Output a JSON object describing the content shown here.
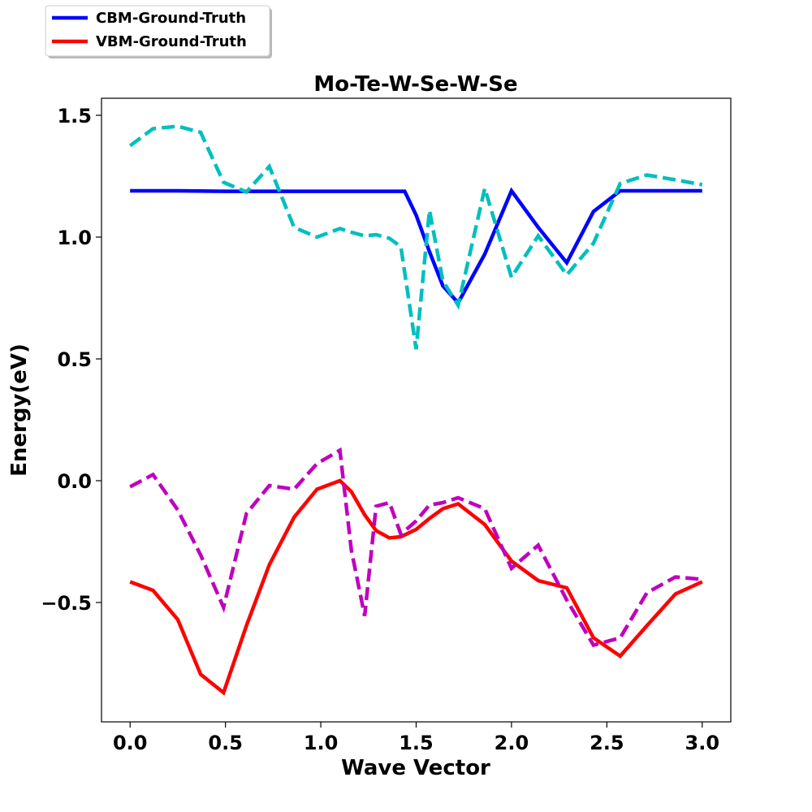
{
  "chart_data": {
    "type": "line",
    "title": "Mo-Te-W-Se-W-Se",
    "xlabel": "Wave Vector",
    "ylabel": "Energy(eV)",
    "xlim": [
      -0.15,
      3.15
    ],
    "ylim": [
      -0.99,
      1.57
    ],
    "xticks": [
      0.0,
      0.5,
      1.0,
      1.5,
      2.0,
      2.5,
      3.0
    ],
    "xtick_labels": [
      "0.0",
      "0.5",
      "1.0",
      "1.5",
      "2.0",
      "2.5",
      "3.0"
    ],
    "yticks": [
      -0.5,
      0.0,
      0.5,
      1.0,
      1.5
    ],
    "ytick_labels": [
      "−0.5",
      "0.0",
      "0.5",
      "1.0",
      "1.5"
    ],
    "grid": false,
    "legend_position": "top-left, outside the plot",
    "series": [
      {
        "name": "CBM-Ground-Truth",
        "color": "#0000ff",
        "style": "solid",
        "in_legend": true,
        "x": [
          0.0,
          0.25,
          0.5,
          0.75,
          1.0,
          1.25,
          1.44,
          1.5,
          1.57,
          1.64,
          1.72,
          1.86,
          2.0,
          2.14,
          2.29,
          2.43,
          2.57,
          2.71,
          2.86,
          3.0
        ],
        "y": [
          1.19,
          1.19,
          1.188,
          1.188,
          1.188,
          1.188,
          1.188,
          1.09,
          0.94,
          0.8,
          0.73,
          0.93,
          1.19,
          1.04,
          0.895,
          1.105,
          1.19,
          1.19,
          1.19,
          1.19
        ]
      },
      {
        "name": "VBM-Ground-Truth",
        "color": "#ff0000",
        "style": "solid",
        "in_legend": true,
        "x": [
          0.0,
          0.12,
          0.25,
          0.37,
          0.49,
          0.61,
          0.73,
          0.86,
          0.98,
          1.1,
          1.16,
          1.23,
          1.29,
          1.36,
          1.42,
          1.5,
          1.57,
          1.64,
          1.72,
          1.86,
          2.0,
          2.14,
          2.29,
          2.43,
          2.57,
          2.71,
          2.86,
          3.0
        ],
        "y": [
          -0.415,
          -0.45,
          -0.57,
          -0.795,
          -0.87,
          -0.595,
          -0.345,
          -0.15,
          -0.035,
          0.0,
          -0.045,
          -0.14,
          -0.205,
          -0.235,
          -0.23,
          -0.2,
          -0.155,
          -0.115,
          -0.095,
          -0.18,
          -0.33,
          -0.41,
          -0.44,
          -0.645,
          -0.72,
          -0.595,
          -0.465,
          -0.415
        ]
      },
      {
        "name": "",
        "color": "#00bfbf",
        "style": "dashed",
        "in_legend": false,
        "x": [
          0.0,
          0.12,
          0.25,
          0.37,
          0.49,
          0.61,
          0.73,
          0.86,
          0.98,
          1.1,
          1.16,
          1.23,
          1.29,
          1.36,
          1.42,
          1.5,
          1.57,
          1.64,
          1.72,
          1.86,
          2.0,
          2.14,
          2.29,
          2.43,
          2.57,
          2.71,
          2.86,
          3.0
        ],
        "y": [
          1.375,
          1.445,
          1.455,
          1.43,
          1.225,
          1.185,
          1.29,
          1.04,
          1.0,
          1.035,
          1.02,
          1.005,
          1.01,
          0.995,
          0.96,
          0.54,
          1.11,
          0.82,
          0.72,
          1.2,
          0.835,
          1.005,
          0.845,
          0.975,
          1.22,
          1.255,
          1.235,
          1.215
        ]
      },
      {
        "name": "",
        "color": "#bf00bf",
        "style": "dashed",
        "in_legend": false,
        "x": [
          0.0,
          0.12,
          0.25,
          0.37,
          0.49,
          0.61,
          0.73,
          0.86,
          0.98,
          1.1,
          1.16,
          1.23,
          1.29,
          1.36,
          1.42,
          1.5,
          1.57,
          1.64,
          1.72,
          1.86,
          2.0,
          2.14,
          2.29,
          2.43,
          2.57,
          2.71,
          2.86,
          3.0
        ],
        "y": [
          -0.025,
          0.025,
          -0.12,
          -0.305,
          -0.52,
          -0.135,
          -0.02,
          -0.035,
          0.07,
          0.125,
          -0.285,
          -0.555,
          -0.105,
          -0.09,
          -0.22,
          -0.165,
          -0.1,
          -0.09,
          -0.07,
          -0.115,
          -0.36,
          -0.265,
          -0.49,
          -0.675,
          -0.645,
          -0.46,
          -0.395,
          -0.405
        ]
      }
    ]
  }
}
